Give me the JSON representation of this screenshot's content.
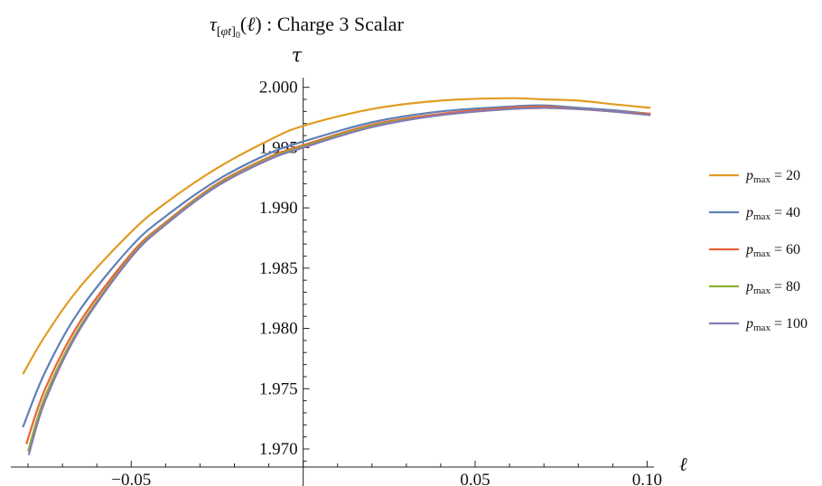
{
  "chart_data": {
    "type": "line",
    "title": "τ[φt]0(ℓ) : Charge 3 Scalar",
    "xlabel": "ℓ",
    "ylabel": "τ",
    "xlim": [
      -0.085,
      0.102
    ],
    "ylim": [
      1.9685,
      2.0008
    ],
    "x_ticks": [
      -0.05,
      0.05,
      0.1
    ],
    "x_tick_labels": [
      "−0.05",
      "0.05",
      "0.10"
    ],
    "y_ticks": [
      1.97,
      1.975,
      1.98,
      1.985,
      1.99,
      1.995,
      2.0
    ],
    "y_tick_labels": [
      "1.970",
      "1.975",
      "1.980",
      "1.985",
      "1.990",
      "1.995",
      "2.000"
    ],
    "grid": false,
    "legend_position": "right",
    "x": [
      -0.082,
      -0.075,
      -0.065,
      -0.05,
      -0.04,
      -0.025,
      -0.01,
      0.0,
      0.02,
      0.04,
      0.06,
      0.07,
      0.08,
      0.09,
      0.101
    ],
    "series": [
      {
        "name": "p_max = 20",
        "color": "#E19C24",
        "x": [
          -0.0815,
          -0.075,
          -0.065,
          -0.05,
          -0.04,
          -0.025,
          -0.01,
          0.0,
          0.02,
          0.04,
          0.06,
          0.07,
          0.08,
          0.09,
          0.101
        ],
        "values": [
          1.9762,
          1.9794,
          1.9834,
          1.988,
          1.9904,
          1.9933,
          1.9956,
          1.9968,
          1.9982,
          1.9989,
          1.9991,
          1.999,
          1.9989,
          1.9986,
          1.9983
        ]
      },
      {
        "name": "p_max = 40",
        "color": "#5E81B5",
        "x": [
          -0.0815,
          -0.075,
          -0.065,
          -0.05,
          -0.04,
          -0.025,
          -0.01,
          0.0,
          0.02,
          0.04,
          0.06,
          0.07,
          0.08,
          0.09,
          0.101
        ],
        "values": [
          1.9718,
          1.9764,
          1.9815,
          1.9868,
          1.9893,
          1.9923,
          1.9945,
          1.9955,
          1.9971,
          1.998,
          1.9984,
          1.9985,
          1.9983,
          1.9981,
          1.9978
        ]
      },
      {
        "name": "p_max = 60",
        "color": "#EB6235",
        "x": [
          -0.0805,
          -0.075,
          -0.065,
          -0.05,
          -0.04,
          -0.025,
          -0.01,
          0.0,
          0.02,
          0.04,
          0.06,
          0.07,
          0.08,
          0.09,
          0.101
        ],
        "values": [
          1.9704,
          1.975,
          1.9805,
          1.9862,
          1.9888,
          1.992,
          1.9942,
          1.9952,
          1.9969,
          1.9978,
          1.9983,
          1.9984,
          1.9982,
          1.998,
          1.9978
        ]
      },
      {
        "name": "p_max = 80",
        "color": "#8FB032",
        "x": [
          -0.08,
          -0.075,
          -0.065,
          -0.05,
          -0.04,
          -0.025,
          -0.01,
          0.0,
          0.02,
          0.04,
          0.06,
          0.07,
          0.08,
          0.09,
          0.101
        ],
        "values": [
          1.9698,
          1.9744,
          1.9801,
          1.986,
          1.9887,
          1.9919,
          1.9941,
          1.9951,
          1.9968,
          1.9977,
          1.9982,
          1.9983,
          1.9982,
          1.998,
          1.9977
        ]
      },
      {
        "name": "p_max = 100",
        "color": "#8778B3",
        "x": [
          -0.0798,
          -0.075,
          -0.065,
          -0.05,
          -0.04,
          -0.025,
          -0.01,
          0.0,
          0.02,
          0.04,
          0.06,
          0.07,
          0.08,
          0.09,
          0.101
        ],
        "values": [
          1.9695,
          1.974,
          1.9799,
          1.9859,
          1.9886,
          1.9918,
          1.994,
          1.995,
          1.9967,
          1.9977,
          1.9982,
          1.9983,
          1.9982,
          1.998,
          1.9977
        ]
      }
    ]
  }
}
